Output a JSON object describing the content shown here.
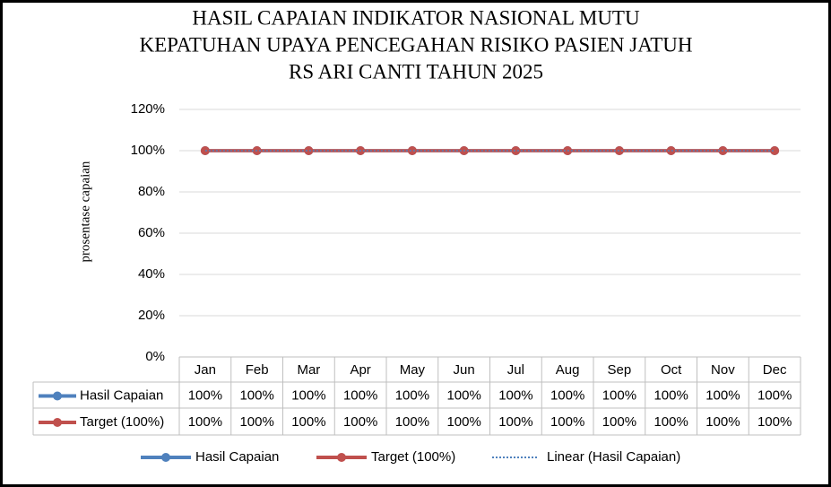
{
  "chart_data": {
    "type": "line",
    "title": [
      "HASIL CAPAIAN INDIKATOR NASIONAL MUTU",
      "KEPATUHAN UPAYA PENCEGAHAN RISIKO PASIEN JATUH",
      "RS ARI CANTI TAHUN 2025"
    ],
    "ylabel": "prosentase capaian",
    "categories": [
      "Jan",
      "Feb",
      "Mar",
      "Apr",
      "May",
      "Jun",
      "Jul",
      "Aug",
      "Sep",
      "Oct",
      "Nov",
      "Dec"
    ],
    "series": [
      {
        "name": "Hasil Capaian",
        "color": "#4f81bd",
        "values": [
          100,
          100,
          100,
          100,
          100,
          100,
          100,
          100,
          100,
          100,
          100,
          100
        ],
        "value_labels": [
          "100%",
          "100%",
          "100%",
          "100%",
          "100%",
          "100%",
          "100%",
          "100%",
          "100%",
          "100%",
          "100%",
          "100%"
        ]
      },
      {
        "name": "Target (100%)",
        "color": "#c0504d",
        "values": [
          100,
          100,
          100,
          100,
          100,
          100,
          100,
          100,
          100,
          100,
          100,
          100
        ],
        "value_labels": [
          "100%",
          "100%",
          "100%",
          "100%",
          "100%",
          "100%",
          "100%",
          "100%",
          "100%",
          "100%",
          "100%",
          "100%"
        ]
      }
    ],
    "trendline": {
      "name": "Linear (Hasil Capaian)",
      "color": "#4f81bd"
    },
    "ylim": [
      0,
      120
    ],
    "yticks": [
      {
        "value": 0,
        "label": "0%"
      },
      {
        "value": 20,
        "label": "20%"
      },
      {
        "value": 40,
        "label": "40%"
      },
      {
        "value": 60,
        "label": "60%"
      },
      {
        "value": 80,
        "label": "80%"
      },
      {
        "value": 100,
        "label": "100%"
      },
      {
        "value": 120,
        "label": "120%"
      }
    ],
    "grid": true
  }
}
